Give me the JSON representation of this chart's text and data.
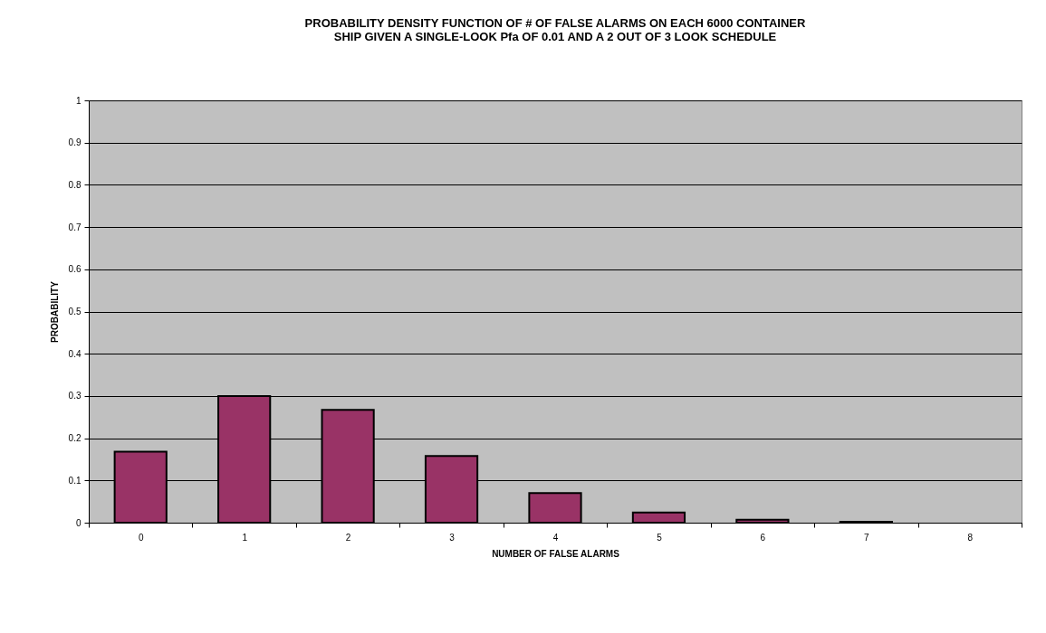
{
  "chart_data": {
    "type": "bar",
    "title": [
      "PROBABILITY DENSITY FUNCTION OF # OF FALSE ALARMS ON EACH 6000 CONTAINER",
      "SHIP GIVEN A SINGLE-LOOK Pfa OF 0.01 AND A 2 OUT OF 3 LOOK SCHEDULE"
    ],
    "xlabel": "NUMBER OF FALSE ALARMS",
    "ylabel": "PROBABILITY",
    "categories": [
      "0",
      "1",
      "2",
      "3",
      "4",
      "5",
      "6",
      "7",
      "8"
    ],
    "values": [
      0.168,
      0.3,
      0.267,
      0.158,
      0.07,
      0.024,
      0.007,
      0.002,
      0
    ],
    "color": "#993366",
    "ylim": [
      0,
      1
    ],
    "yticks": [
      0,
      0.1,
      0.2,
      0.3,
      0.4,
      0.5,
      0.6,
      0.7,
      0.8,
      0.9,
      1
    ],
    "grid": "y"
  }
}
